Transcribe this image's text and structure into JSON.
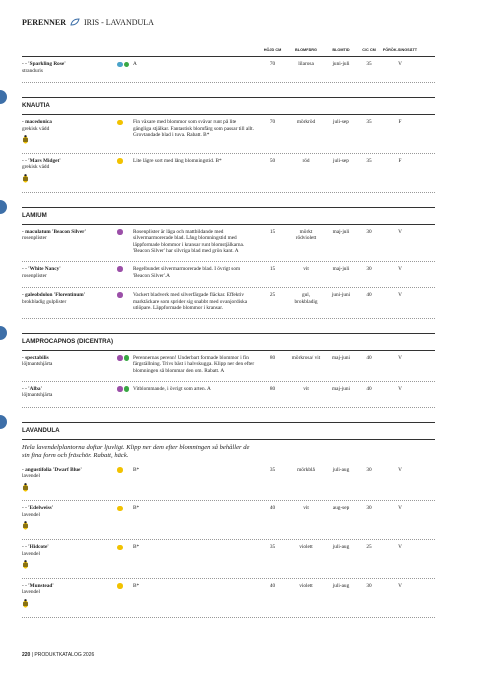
{
  "header": {
    "category": "PERENNER",
    "title": "IRIS - LAVANDULA"
  },
  "columns": [
    "HÖJD CM",
    "BLOMFÄRG",
    "BLOMTID",
    "C/C CM",
    "FÖRÖK-SINGSÄTT"
  ],
  "top_rows": [
    {
      "name": "- - 'Sparkling Rose'",
      "common": "stranduris",
      "dots": [
        "#4aa3c9",
        "#3aa845"
      ],
      "bee": false,
      "desc": "A",
      "height": 70,
      "color": "lilarosa",
      "time": "juni-juli",
      "spacing": 35,
      "propagation": "V"
    }
  ],
  "sections": [
    {
      "title": "KNAUTIA",
      "rows": [
        {
          "name": "- macedonica",
          "common": "grekisk vädd",
          "dots": [
            "#f2c200"
          ],
          "bee": true,
          "desc": "Fin växare med blommor som svävar runt på lite gängliga stjälkar. Fantastisk blomfärg som passar till allt. Grovtandade blad i tuva. Rabatt. B*",
          "height": 70,
          "color": "mörkröd",
          "time": "juli-sep",
          "spacing": 35,
          "propagation": "F"
        },
        {
          "name": "- - 'Mars Midget'",
          "common": "grekisk vädd",
          "dots": [
            "#f2c200"
          ],
          "bee": true,
          "desc": "Lite lägre sort med lång blomningstid. B*",
          "height": 50,
          "color": "röd",
          "time": "juli-sep",
          "spacing": 35,
          "propagation": "F"
        }
      ]
    },
    {
      "title": "LAMIUM",
      "rows": [
        {
          "name": "- maculatum 'Beacon Silver'",
          "common": "rosenplister",
          "dots": [
            "#9b4fa8"
          ],
          "bee": false,
          "desc": "Rosenplister är låga och mattbildande med silvermarmorerade blad. Lång blomningstid med läppformade blommor i kransar runt blomstjälkarna. 'Beacon Silver' har silvriga blad med grön kant. A",
          "height": 15,
          "color": "mörkt rödviolett",
          "time": "maj-juli",
          "spacing": 30,
          "propagation": "V"
        },
        {
          "name": "- - 'White Nancy'",
          "common": "rosenplister",
          "dots": [
            "#9b4fa8"
          ],
          "bee": false,
          "desc": "Regelbundet silvermarmorerade blad. I övrigt som 'Beacon Silver'.A",
          "height": 15,
          "color": "vit",
          "time": "maj-juli",
          "spacing": 30,
          "propagation": "V"
        },
        {
          "name": "- galeobdolon 'Florentinum'",
          "common": "brokbladig gulplister",
          "dots": [
            "#9b4fa8"
          ],
          "bee": false,
          "desc": "Vackert bladverk med silverfärgade fläckar. Effektiv marktäckare som sprider sig snabbt med ovanjordiska utlöpare. Läppformade blommor i kransar.",
          "height": 25,
          "color": "gul, brokbladig",
          "time": "juni-juni",
          "spacing": 40,
          "propagation": "V"
        }
      ]
    },
    {
      "title": "LAMPROCAPNOS (DICENTRA)",
      "rows": [
        {
          "name": "- spectabilis",
          "common": "löjtnantshjärta",
          "dots": [
            "#9b4fa8",
            "#3aa845"
          ],
          "bee": false,
          "desc": "Perennernas perenn! Underbart formade blommor i fin färgställning. Trivs bäst i halvskugga. Klipp ner den efter blomningen så blommar den om. Rabatt. A",
          "height": 80,
          "color": "mörkrosa/ vit",
          "time": "maj-juni",
          "spacing": 40,
          "propagation": "V"
        },
        {
          "name": "- - 'Alba'",
          "common": "löjtnantshjärta",
          "dots": [
            "#9b4fa8",
            "#3aa845"
          ],
          "bee": false,
          "desc": "Vitblommande, i övrigt som arten. A",
          "height": 80,
          "color": "vit",
          "time": "maj-juni",
          "spacing": 40,
          "propagation": "V"
        }
      ]
    },
    {
      "title": "LAVANDULA",
      "intro": "Hela lavendelplantorna doftar ljuvligt. Klipp ner dem efter blomningen så behåller de sin fina form och fräschör. Rabatt, häck.",
      "rows": [
        {
          "name": "- angustifolia 'Dwarf Blue'",
          "common": "lavendel",
          "dots": [
            "#f2c200"
          ],
          "bee": true,
          "desc": "B*",
          "height": 35,
          "color": "mörkblå",
          "time": "juli-aug",
          "spacing": 30,
          "propagation": "V"
        },
        {
          "name": "- - 'Edelweiss'",
          "common": "lavendel",
          "dots": [
            "#f2c200"
          ],
          "bee": true,
          "desc": "B*",
          "height": 40,
          "color": "vit",
          "time": "aug-sep",
          "spacing": 30,
          "propagation": "V"
        },
        {
          "name": "- - 'Hidcote'",
          "common": "lavendel",
          "dots": [
            "#f2c200"
          ],
          "bee": true,
          "desc": "B*",
          "height": 35,
          "color": "violett",
          "time": "juli-aug",
          "spacing": 25,
          "propagation": "V"
        },
        {
          "name": "- - 'Munstead'",
          "common": "lavendel",
          "dots": [
            "#f2c200"
          ],
          "bee": true,
          "desc": "B*",
          "height": 40,
          "color": "violett",
          "time": "juli-aug",
          "spacing": 30,
          "propagation": "V"
        }
      ]
    }
  ],
  "footer": {
    "page": "220",
    "catalog": "PRODUKTKATALOG 2026"
  }
}
